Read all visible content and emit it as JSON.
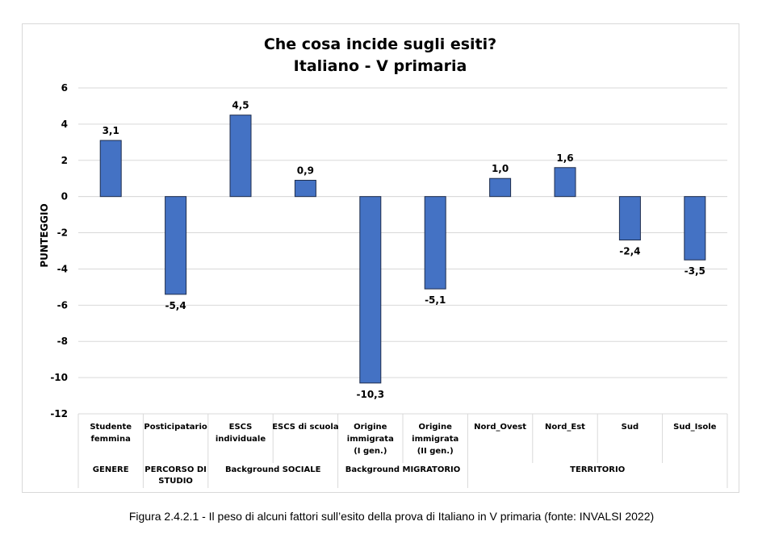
{
  "caption": "Figura 2.4.2.1 - Il peso di alcuni fattori sull’esito della prova di Italiano in V primaria  (fonte: INVALSI 2022)",
  "chart_data": {
    "type": "bar",
    "title": "Che cosa incide sugli esiti?",
    "subtitle": "Italiano - V primaria",
    "xlabel": "",
    "ylabel": "PUNTEGGIO",
    "ylim": [
      -12,
      6
    ],
    "yticks": [
      "6",
      "4",
      "2",
      "0",
      "-2",
      "-4",
      "-6",
      "-8",
      "-10",
      "-12"
    ],
    "ytick_values": [
      6,
      4,
      2,
      0,
      -2,
      -4,
      -6,
      -8,
      -10,
      -12
    ],
    "grid": true,
    "legend": "none",
    "bar_color": "#4472c4",
    "categories": [
      [
        "Studente",
        "femmina"
      ],
      [
        "Posticipatario"
      ],
      [
        "ESCS",
        "individuale"
      ],
      [
        "ESCS di scuola"
      ],
      [
        "Origine",
        "immigrata",
        "(I gen.)"
      ],
      [
        "Origine",
        "immigrata",
        "(II gen.)"
      ],
      [
        "Nord_Ovest"
      ],
      [
        "Nord_Est"
      ],
      [
        "Sud"
      ],
      [
        "Sud_Isole"
      ]
    ],
    "values": [
      3.1,
      -5.4,
      4.5,
      0.9,
      -10.3,
      -5.1,
      1.0,
      1.6,
      -2.4,
      -3.5
    ],
    "data_labels": [
      "3,1",
      "-5,4",
      "4,5",
      "0,9",
      "-10,3",
      "-5,1",
      "1,0",
      "1,6",
      "-2,4",
      "-3,5"
    ],
    "groups": [
      {
        "label": [
          "GENERE"
        ],
        "start": 0,
        "end": 0
      },
      {
        "label": [
          "PERCORSO DI",
          "STUDIO"
        ],
        "start": 1,
        "end": 1
      },
      {
        "label": [
          "Background SOCIALE"
        ],
        "start": 2,
        "end": 3
      },
      {
        "label": [
          "Background MIGRATORIO"
        ],
        "start": 4,
        "end": 5
      },
      {
        "label": [
          "TERRITORIO"
        ],
        "start": 6,
        "end": 9
      }
    ]
  }
}
